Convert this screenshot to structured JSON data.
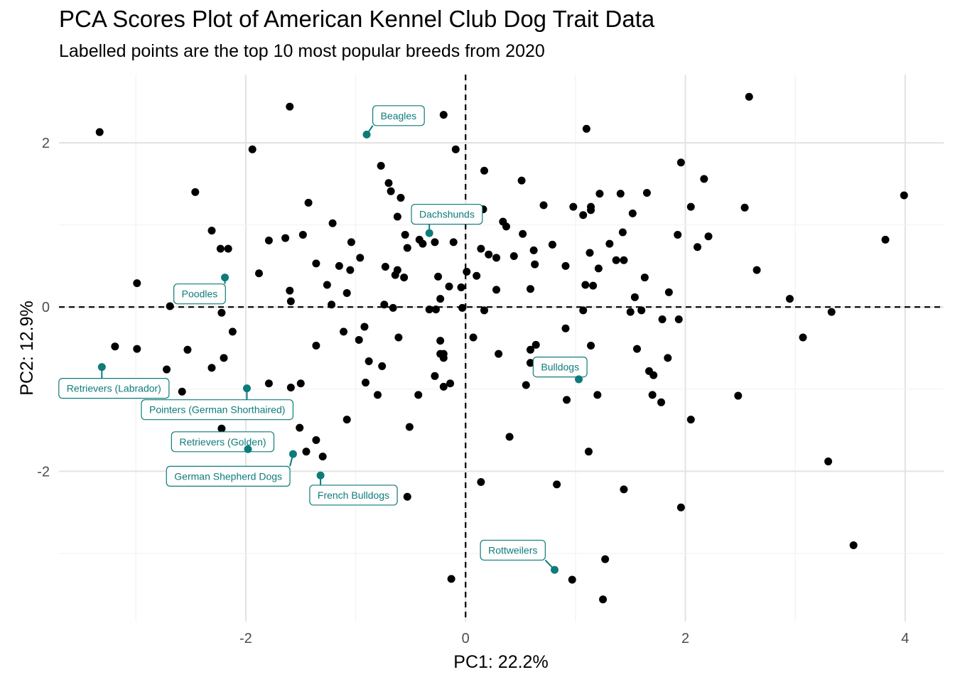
{
  "chart_data": {
    "type": "scatter",
    "title": "PCA Scores Plot of American Kennel Club Dog Trait Data",
    "subtitle": "Labelled points are the top 10 most popular breeds from 2020",
    "xlabel": "PC1: 22.2%",
    "ylabel": "PC2: 12.9%",
    "xlim": [
      -3.7,
      4.35
    ],
    "ylim": [
      -3.83,
      2.83
    ],
    "xticks": [
      -2,
      0,
      2,
      4
    ],
    "yticks": [
      -2,
      0,
      2
    ],
    "grid": true,
    "reference_lines": {
      "x": 0,
      "y": 0
    },
    "colors": {
      "point": "#000000",
      "highlight": "#0e7b7b",
      "grid_major": "#e3e3e3",
      "grid_minor": "#f2f2f2"
    },
    "highlighted": [
      {
        "label": "Beagles",
        "x": -0.9,
        "y": 2.1,
        "lx": -0.61,
        "ly": 2.33
      },
      {
        "label": "Dachshunds",
        "x": -0.33,
        "y": 0.9,
        "lx": -0.17,
        "ly": 1.13
      },
      {
        "label": "Poodles",
        "x": -2.19,
        "y": 0.36,
        "lx": -2.42,
        "ly": 0.16
      },
      {
        "label": "Retrievers (Labrador)",
        "x": -3.31,
        "y": -0.73,
        "lx": -3.2,
        "ly": -0.99
      },
      {
        "label": "Pointers (German Shorthaired)",
        "x": -1.99,
        "y": -0.99,
        "lx": -2.26,
        "ly": -1.25
      },
      {
        "label": "Bulldogs",
        "x": 1.03,
        "y": -0.88,
        "lx": 0.86,
        "ly": -0.73
      },
      {
        "label": "Retrievers (Golden)",
        "x": -1.98,
        "y": -1.73,
        "lx": -2.21,
        "ly": -1.64
      },
      {
        "label": "German Shepherd Dogs",
        "x": -1.57,
        "y": -1.79,
        "lx": -2.16,
        "ly": -2.06
      },
      {
        "label": "French Bulldogs",
        "x": -1.32,
        "y": -2.05,
        "lx": -1.02,
        "ly": -2.29
      },
      {
        "label": "Rottweilers",
        "x": 0.81,
        "y": -3.2,
        "lx": 0.43,
        "ly": -2.96
      }
    ],
    "points": [
      [
        -3.33,
        2.13
      ],
      [
        -1.6,
        2.44
      ],
      [
        -0.2,
        2.34
      ],
      [
        2.58,
        2.56
      ],
      [
        1.1,
        2.17
      ],
      [
        -1.94,
        1.92
      ],
      [
        -0.09,
        1.92
      ],
      [
        0.17,
        1.66
      ],
      [
        -0.77,
        1.72
      ],
      [
        1.96,
        1.76
      ],
      [
        -0.7,
        1.51
      ],
      [
        -0.68,
        1.41
      ],
      [
        -0.59,
        1.33
      ],
      [
        0.51,
        1.54
      ],
      [
        2.17,
        1.56
      ],
      [
        -2.46,
        1.4
      ],
      [
        1.22,
        1.38
      ],
      [
        1.41,
        1.38
      ],
      [
        1.65,
        1.39
      ],
      [
        3.99,
        1.36
      ],
      [
        -1.43,
        1.27
      ],
      [
        0.71,
        1.24
      ],
      [
        0.98,
        1.22
      ],
      [
        1.14,
        1.22
      ],
      [
        2.05,
        1.22
      ],
      [
        2.54,
        1.21
      ],
      [
        1.14,
        1.18
      ],
      [
        1.52,
        1.14
      ],
      [
        1.07,
        1.12
      ],
      [
        0.16,
        1.19
      ],
      [
        -0.62,
        1.1
      ],
      [
        -1.21,
        1.02
      ],
      [
        0.34,
        1.04
      ],
      [
        0.37,
        0.98
      ],
      [
        -2.31,
        0.93
      ],
      [
        -0.55,
        0.88
      ],
      [
        -1.48,
        0.88
      ],
      [
        0.52,
        0.89
      ],
      [
        1.43,
        0.91
      ],
      [
        -1.79,
        0.81
      ],
      [
        -1.64,
        0.84
      ],
      [
        -0.42,
        0.82
      ],
      [
        -0.39,
        0.77
      ],
      [
        -0.28,
        0.79
      ],
      [
        -0.11,
        0.79
      ],
      [
        -1.04,
        0.79
      ],
      [
        1.93,
        0.88
      ],
      [
        2.21,
        0.86
      ],
      [
        3.82,
        0.82
      ],
      [
        -2.23,
        0.71
      ],
      [
        -2.16,
        0.71
      ],
      [
        -0.53,
        0.72
      ],
      [
        0.62,
        0.69
      ],
      [
        0.79,
        0.76
      ],
      [
        1.31,
        0.77
      ],
      [
        2.11,
        0.73
      ],
      [
        0.14,
        0.71
      ],
      [
        0.21,
        0.64
      ],
      [
        0.44,
        0.62
      ],
      [
        0.28,
        0.6
      ],
      [
        -0.96,
        0.6
      ],
      [
        1.13,
        0.66
      ],
      [
        1.37,
        0.57
      ],
      [
        1.44,
        0.57
      ],
      [
        -1.36,
        0.53
      ],
      [
        -1.15,
        0.5
      ],
      [
        -0.73,
        0.49
      ],
      [
        0.63,
        0.52
      ],
      [
        0.91,
        0.5
      ],
      [
        1.21,
        0.47
      ],
      [
        2.65,
        0.45
      ],
      [
        -1.88,
        0.41
      ],
      [
        -1.05,
        0.45
      ],
      [
        -0.62,
        0.45
      ],
      [
        -0.64,
        0.39
      ],
      [
        -0.56,
        0.36
      ],
      [
        -0.25,
        0.37
      ],
      [
        0.01,
        0.43
      ],
      [
        0.1,
        0.38
      ],
      [
        1.63,
        0.36
      ],
      [
        -2.99,
        0.29
      ],
      [
        -1.26,
        0.27
      ],
      [
        -0.15,
        0.25
      ],
      [
        1.09,
        0.27
      ],
      [
        1.16,
        0.26
      ],
      [
        -1.6,
        0.2
      ],
      [
        -1.08,
        0.17
      ],
      [
        -0.04,
        0.24
      ],
      [
        0.28,
        0.21
      ],
      [
        0.59,
        0.22
      ],
      [
        1.85,
        0.18
      ],
      [
        2.95,
        0.1
      ],
      [
        1.54,
        0.12
      ],
      [
        -0.23,
        0.1
      ],
      [
        -1.59,
        0.07
      ],
      [
        -1.22,
        0.03
      ],
      [
        -0.74,
        0.03
      ],
      [
        -0.66,
        -0.01
      ],
      [
        -0.33,
        -0.03
      ],
      [
        -0.27,
        -0.03
      ],
      [
        -0.03,
        -0.01
      ],
      [
        0.17,
        -0.04
      ],
      [
        1.07,
        -0.04
      ],
      [
        1.5,
        -0.06
      ],
      [
        1.6,
        -0.04
      ],
      [
        3.33,
        -0.06
      ],
      [
        -2.69,
        0.01
      ],
      [
        -2.22,
        -0.07
      ],
      [
        1.79,
        -0.15
      ],
      [
        1.94,
        -0.15
      ],
      [
        -0.92,
        -0.24
      ],
      [
        -2.12,
        -0.3
      ],
      [
        -1.11,
        -0.3
      ],
      [
        -0.97,
        -0.4
      ],
      [
        -0.61,
        -0.37
      ],
      [
        -0.23,
        -0.41
      ],
      [
        0.07,
        -0.37
      ],
      [
        0.91,
        -0.26
      ],
      [
        3.07,
        -0.37
      ],
      [
        -3.19,
        -0.48
      ],
      [
        -2.53,
        -0.52
      ],
      [
        -2.99,
        -0.51
      ],
      [
        -1.36,
        -0.47
      ],
      [
        -0.23,
        -0.57
      ],
      [
        -0.2,
        -0.57
      ],
      [
        -0.2,
        -0.62
      ],
      [
        0.3,
        -0.57
      ],
      [
        0.59,
        -0.52
      ],
      [
        0.64,
        -0.46
      ],
      [
        1.14,
        -0.47
      ],
      [
        1.56,
        -0.51
      ],
      [
        1.84,
        -0.62
      ],
      [
        -2.72,
        -0.76
      ],
      [
        -2.31,
        -0.74
      ],
      [
        -2.2,
        -0.62
      ],
      [
        -0.88,
        -0.66
      ],
      [
        -0.76,
        -0.72
      ],
      [
        0.59,
        -0.68
      ],
      [
        -0.28,
        -0.84
      ],
      [
        1.67,
        -0.78
      ],
      [
        1.71,
        -0.83
      ],
      [
        -0.91,
        -0.92
      ],
      [
        -1.79,
        -0.93
      ],
      [
        -1.5,
        -0.93
      ],
      [
        -1.59,
        -0.98
      ],
      [
        -0.2,
        -0.97
      ],
      [
        -0.14,
        -0.93
      ],
      [
        0.55,
        -0.95
      ],
      [
        -2.58,
        -1.03
      ],
      [
        -0.8,
        -1.07
      ],
      [
        -0.43,
        -1.07
      ],
      [
        1.2,
        -1.07
      ],
      [
        1.7,
        -1.07
      ],
      [
        2.48,
        -1.08
      ],
      [
        0.92,
        -1.13
      ],
      [
        1.78,
        -1.16
      ],
      [
        -1.08,
        -1.37
      ],
      [
        2.05,
        -1.37
      ],
      [
        -2.22,
        -1.48
      ],
      [
        -1.51,
        -1.47
      ],
      [
        -0.51,
        -1.46
      ],
      [
        0.4,
        -1.58
      ],
      [
        -1.36,
        -1.62
      ],
      [
        -1.45,
        -1.76
      ],
      [
        -1.3,
        -1.82
      ],
      [
        1.12,
        -1.76
      ],
      [
        3.3,
        -1.88
      ],
      [
        0.14,
        -2.13
      ],
      [
        0.83,
        -2.16
      ],
      [
        1.44,
        -2.22
      ],
      [
        -0.53,
        -2.31
      ],
      [
        1.96,
        -2.44
      ],
      [
        3.53,
        -2.9
      ],
      [
        1.27,
        -3.07
      ],
      [
        -0.13,
        -3.31
      ],
      [
        0.97,
        -3.32
      ],
      [
        1.25,
        -3.56
      ]
    ]
  }
}
